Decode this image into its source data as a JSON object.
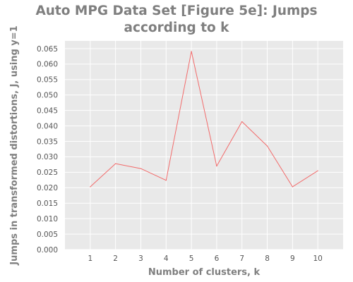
{
  "chart_data": {
    "type": "line",
    "title_line1": "Auto MPG Data Set [Figure 5e]: Jumps",
    "title_line2": "according to k",
    "xlabel": "Number of clusters, k",
    "ylabel": "Jumps in transformed distortions, J, using y=1",
    "x": [
      1,
      2,
      3,
      4,
      5,
      6,
      7,
      8,
      9,
      10
    ],
    "series": [
      {
        "values": [
          0.0203,
          0.0278,
          0.0262,
          0.0224,
          0.0641,
          0.027,
          0.0414,
          0.0335,
          0.0203,
          0.0255
        ]
      }
    ],
    "xticks": [
      "1",
      "2",
      "3",
      "4",
      "5",
      "6",
      "7",
      "8",
      "9",
      "10"
    ],
    "yticks": [
      "0.000",
      "0.005",
      "0.010",
      "0.015",
      "0.020",
      "0.025",
      "0.030",
      "0.035",
      "0.040",
      "0.045",
      "0.050",
      "0.055",
      "0.060",
      "0.065"
    ],
    "xlim": [
      0,
      11
    ],
    "ylim": [
      0,
      0.0675
    ],
    "grid": true,
    "colors": {
      "line": "#f26b6b",
      "background": "#e9e9e9",
      "grid": "#ffffff"
    }
  }
}
